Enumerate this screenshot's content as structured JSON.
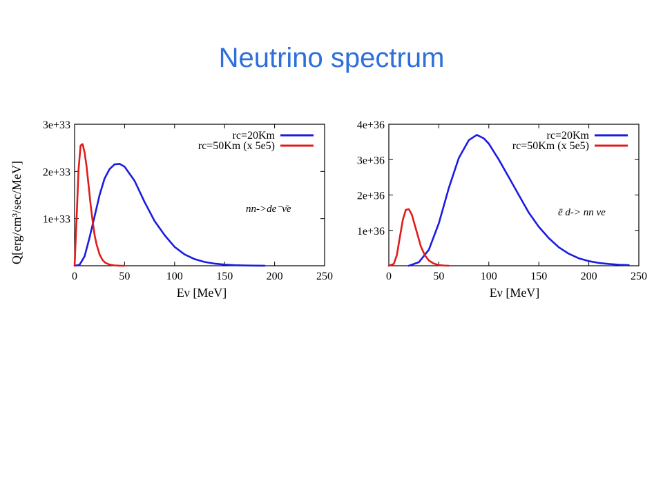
{
  "slide": {
    "title": "Neutrino spectrum"
  },
  "colors": {
    "title": "#2e6fdb",
    "blue": "#1b1be0",
    "red": "#e01b1b"
  },
  "chart_data": [
    {
      "type": "line",
      "xlabel": "Eν [MeV]",
      "ylabel": "Q[erg/cm³/sec/MeV]",
      "xlim": [
        0,
        250
      ],
      "ylim": [
        0,
        3e+33
      ],
      "xticks": [
        0,
        50,
        100,
        150,
        200,
        250
      ],
      "xtick_labels": [
        "0",
        "50",
        "100",
        "150",
        "200",
        "250"
      ],
      "yticks": [
        1e+33,
        2e+33,
        3e+33
      ],
      "ytick_labels": [
        "1e+33",
        "2e+33",
        "3e+33"
      ],
      "legend_position": "top-right",
      "annotation": "nn->de⁻ν̄e",
      "series": [
        {
          "name": "rc=20Km",
          "color": "#1b1be0",
          "x": [
            0,
            5,
            10,
            15,
            20,
            25,
            30,
            35,
            40,
            45,
            50,
            60,
            70,
            80,
            90,
            100,
            110,
            120,
            130,
            140,
            150,
            160,
            170,
            180,
            190
          ],
          "y": [
            0,
            2e+31,
            2e+32,
            6e+32,
            1.05e+33,
            1.5e+33,
            1.85e+33,
            2.05e+33,
            2.15e+33,
            2.16e+33,
            2.1e+33,
            1.8e+33,
            1.35e+33,
            9.5e+32,
            6.5e+32,
            4e+32,
            2.4e+32,
            1.4e+32,
            8e+31,
            4.5e+31,
            2.5e+31,
            1.2e+31,
            6e+30,
            3e+30,
            1e+30
          ]
        },
        {
          "name": "rc=50Km (x 5e5)",
          "color": "#e01b1b",
          "x": [
            0,
            2,
            4,
            6,
            8,
            10,
            12,
            14,
            16,
            18,
            20,
            22,
            25,
            28,
            31,
            35,
            40,
            45,
            50
          ],
          "y": [
            0,
            1e+33,
            2.05e+33,
            2.55e+33,
            2.58e+33,
            2.4e+33,
            2.1e+33,
            1.7e+33,
            1.3e+33,
            9.5e+32,
            6.5e+32,
            4.5e+32,
            2.4e+32,
            1.2e+32,
            6e+31,
            2.5e+31,
            8e+30,
            2e+30,
            0
          ]
        }
      ]
    },
    {
      "type": "line",
      "xlabel": "Eν [MeV]",
      "ylabel": "",
      "xlim": [
        0,
        250
      ],
      "ylim": [
        0,
        4e+36
      ],
      "xticks": [
        0,
        50,
        100,
        150,
        200,
        250
      ],
      "xtick_labels": [
        "0",
        "50",
        "100",
        "150",
        "200",
        "250"
      ],
      "yticks": [
        1e+36,
        2e+36,
        3e+36,
        4e+36
      ],
      "ytick_labels": [
        "1e+36",
        "2e+36",
        "3e+36",
        "4e+36"
      ],
      "legend_position": "top-right",
      "annotation": "ē d-> nn νe",
      "series": [
        {
          "name": "rc=20Km",
          "color": "#1b1be0",
          "x": [
            20,
            30,
            40,
            50,
            60,
            70,
            80,
            88,
            95,
            100,
            110,
            120,
            130,
            140,
            150,
            160,
            170,
            180,
            190,
            200,
            210,
            220,
            230,
            240
          ],
          "y": [
            0,
            1e+35,
            4.5e+35,
            1.2e+36,
            2.2e+36,
            3.05e+36,
            3.55e+36,
            3.7e+36,
            3.6e+36,
            3.45e+36,
            3e+36,
            2.5e+36,
            2e+36,
            1.5e+36,
            1.1e+36,
            7.8e+35,
            5.2e+35,
            3.4e+35,
            2.1e+35,
            1.3e+35,
            8e+34,
            5e+34,
            3e+34,
            2e+34
          ]
        },
        {
          "name": "rc=50Km (x 5e5)",
          "color": "#e01b1b",
          "x": [
            0,
            5,
            8,
            11,
            14,
            17,
            20,
            23,
            26,
            29,
            32,
            36,
            40,
            45,
            50,
            55,
            60
          ],
          "y": [
            0,
            5e+34,
            3e+35,
            8e+35,
            1.3e+36,
            1.58e+36,
            1.6e+36,
            1.45e+36,
            1.15e+36,
            8.5e+35,
            5.5e+35,
            3e+35,
            1.5e+35,
            6e+34,
            2e+34,
            5e+33,
            0
          ]
        }
      ]
    }
  ]
}
